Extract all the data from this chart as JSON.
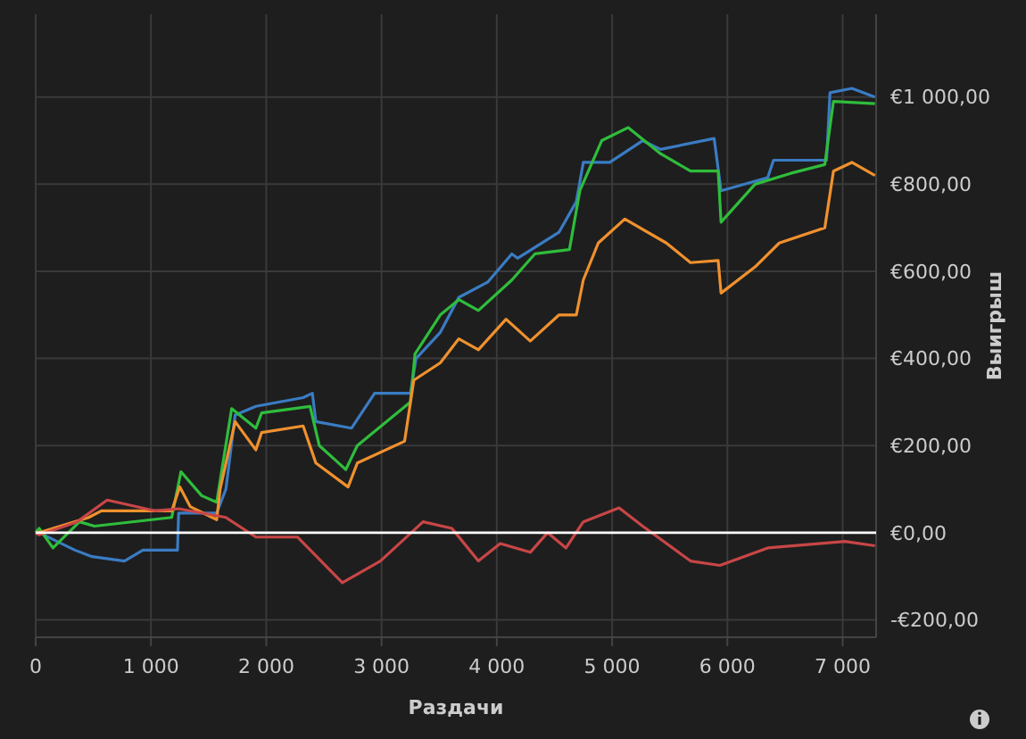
{
  "chart_data": {
    "type": "line",
    "xlabel": "Раздачи",
    "ylabel": "Выигрыш",
    "xlim": [
      0,
      7290
    ],
    "xticks": [
      0,
      {
        "value": 1000,
        "label": "1 000"
      },
      {
        "value": 2000,
        "label": "2 000"
      },
      {
        "value": 3000,
        "label": "3 000"
      },
      {
        "value": 4000,
        "label": "4 000"
      },
      {
        "value": 5000,
        "label": "5 000"
      },
      {
        "value": 6000,
        "label": "6 000"
      },
      {
        "value": 7000,
        "label": "7 000"
      }
    ],
    "ylim": [
      -240,
      1190
    ],
    "yticks": [
      {
        "value": -200,
        "label": "-€200,00"
      },
      {
        "value": 0,
        "label": "€0,00"
      },
      {
        "value": 200,
        "label": "€200,00"
      },
      {
        "value": 400,
        "label": "€400,00"
      },
      {
        "value": 600,
        "label": "€600,00"
      },
      {
        "value": 800,
        "label": "€800,00"
      },
      {
        "value": 1000,
        "label": "€1 000,00"
      }
    ],
    "grid": true,
    "marker": "none",
    "line_style": "solid",
    "ref_lines": [
      {
        "axis": "y",
        "value": 0,
        "color": "#ffffff"
      }
    ],
    "series": [
      {
        "color": "#3a7cc3",
        "x": [
          0,
          30,
          340,
          490,
          770,
          930,
          1230,
          1240,
          1570,
          1650,
          1730,
          1910,
          2320,
          2400,
          2430,
          2740,
          2940,
          3250,
          3300,
          3510,
          3670,
          3920,
          4130,
          4180,
          4540,
          4690,
          4750,
          4980,
          5265,
          5420,
          5885,
          5945,
          6350,
          6400,
          6860,
          6890,
          7080,
          7280
        ],
        "values": [
          0,
          0,
          -40,
          -55,
          -65,
          -40,
          -40,
          45,
          45,
          100,
          270,
          290,
          310,
          320,
          255,
          240,
          320,
          320,
          400,
          460,
          540,
          575,
          640,
          630,
          690,
          760,
          850,
          850,
          900,
          880,
          905,
          785,
          815,
          855,
          855,
          1010,
          1020,
          1000
        ]
      },
      {
        "color": "#2fbd3c",
        "x": [
          0,
          30,
          150,
          380,
          510,
          1180,
          1260,
          1440,
          1570,
          1700,
          1910,
          1960,
          2380,
          2460,
          2690,
          2790,
          3250,
          3290,
          3510,
          3670,
          3840,
          4130,
          4330,
          4630,
          4720,
          4910,
          5140,
          5420,
          5680,
          5920,
          5945,
          6240,
          6550,
          6845,
          6920,
          7280
        ],
        "values": [
          0,
          10,
          -35,
          25,
          15,
          35,
          140,
          85,
          70,
          285,
          240,
          275,
          290,
          200,
          145,
          200,
          300,
          410,
          500,
          535,
          510,
          580,
          640,
          650,
          785,
          900,
          930,
          870,
          830,
          830,
          713,
          800,
          825,
          845,
          990,
          985
        ]
      },
      {
        "color": "#f0912e",
        "x": [
          0,
          30,
          460,
          570,
          1180,
          1250,
          1340,
          1570,
          1600,
          1730,
          1910,
          1960,
          2320,
          2430,
          2710,
          2790,
          3200,
          3280,
          3510,
          3670,
          3840,
          4080,
          4290,
          4540,
          4690,
          4750,
          4880,
          5110,
          5470,
          5680,
          5920,
          5945,
          6240,
          6450,
          6845,
          6920,
          7080,
          7280
        ],
        "values": [
          0,
          0,
          35,
          50,
          50,
          105,
          60,
          30,
          100,
          255,
          190,
          230,
          245,
          160,
          105,
          160,
          210,
          350,
          390,
          445,
          420,
          490,
          440,
          500,
          500,
          580,
          665,
          720,
          665,
          620,
          625,
          550,
          610,
          665,
          700,
          830,
          850,
          820
        ]
      },
      {
        "color": "#c84646",
        "x": [
          0,
          30,
          360,
          620,
          1040,
          1240,
          1650,
          1910,
          2270,
          2660,
          2990,
          3360,
          3610,
          3840,
          4030,
          4290,
          4440,
          4600,
          4750,
          5060,
          5265,
          5680,
          5935,
          6350,
          7020,
          7280
        ],
        "values": [
          0,
          -5,
          25,
          75,
          50,
          55,
          35,
          -10,
          -10,
          -115,
          -65,
          25,
          10,
          -65,
          -25,
          -45,
          0,
          -35,
          25,
          57,
          15,
          -65,
          -75,
          -35,
          -20,
          -30
        ]
      }
    ]
  }
}
